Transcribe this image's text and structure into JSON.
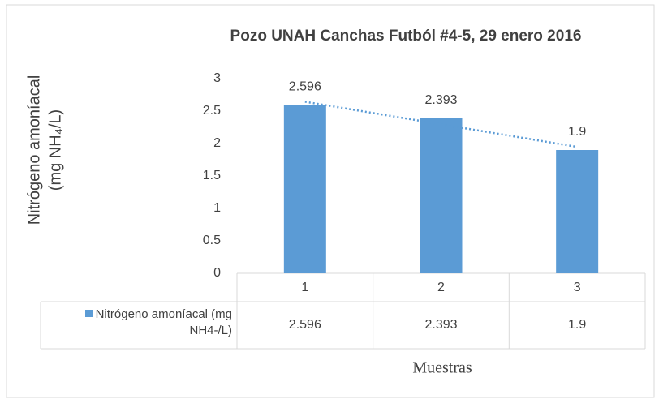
{
  "chart_data": {
    "type": "bar",
    "title": "Pozo UNAH Canchas Futból #4-5, 29 enero 2016",
    "y_label": [
      "Nitrógeno amoníacal",
      "(mg NH₄/L)"
    ],
    "x_label": "Muestras",
    "categories": [
      "1",
      "2",
      "3"
    ],
    "series": [
      {
        "name": "Nitrógeno amoníacal (mg NH4-/L)",
        "color": "#5b9bd5",
        "values": [
          2.596,
          2.393,
          1.9
        ]
      }
    ],
    "ylim": [
      0,
      3
    ],
    "yticks": [
      0,
      0.5,
      1,
      1.5,
      2,
      2.5,
      3
    ],
    "trendline": "linear",
    "data_table": true
  }
}
